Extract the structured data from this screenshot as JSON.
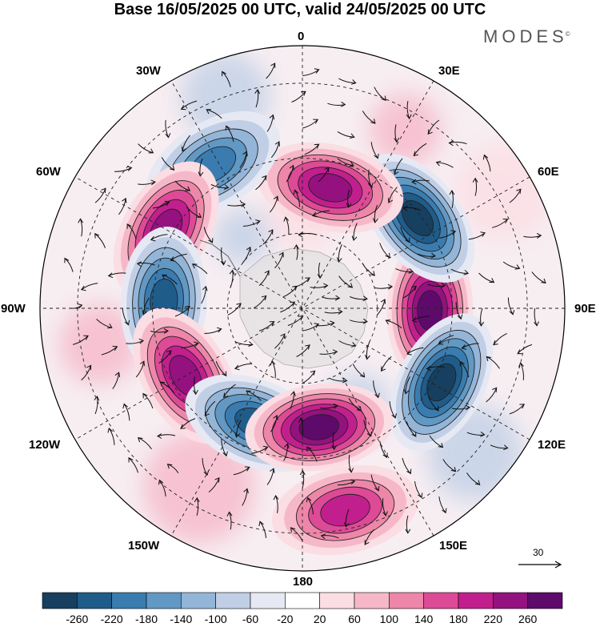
{
  "title": "Base 16/05/2025 00 UTC, valid 24/05/2025 00 UTC",
  "brand": {
    "name": "MODES",
    "mark": "©"
  },
  "longitude_labels": {
    "lon_0": "0",
    "lon_30e": "30E",
    "lon_60e": "60E",
    "lon_90e": "90E",
    "lon_120e": "120E",
    "lon_150e": "150E",
    "lon_180": "180",
    "lon_150w": "150W",
    "lon_120w": "120W",
    "lon_90w": "90W",
    "lon_60w": "60W",
    "lon_30w": "30W"
  },
  "reference_vector": {
    "value": "30"
  },
  "colorbar": {
    "colors": [
      "#173f5f",
      "#1f5c8a",
      "#3a7cb0",
      "#6198c4",
      "#93b5d8",
      "#c0cfe6",
      "#e6e9f3",
      "#ffffff",
      "#fbdde4",
      "#f6b8c9",
      "#ee86aa",
      "#dd4a96",
      "#c21f8e",
      "#94117f",
      "#5e0a6b"
    ],
    "tick_labels": [
      "-260",
      "-220",
      "-180",
      "-140",
      "-100",
      "-60",
      "-20",
      "20",
      "60",
      "100",
      "140",
      "180",
      "220",
      "260"
    ]
  },
  "anomaly_centers": [
    {
      "name": "anomaly-high-east",
      "lon": 91,
      "colat": 34,
      "value": 260
    },
    {
      "name": "anomaly-low-east-south",
      "lon": 118,
      "colat": 42,
      "value": -270
    },
    {
      "name": "anomaly-low-east-north",
      "lon": 52,
      "colat": 39,
      "value": -250
    },
    {
      "name": "anomaly-high-north",
      "lon": 13,
      "colat": 33,
      "value": 200
    },
    {
      "name": "anomaly-low-northwest",
      "lon": -32,
      "colat": 45,
      "value": -180
    },
    {
      "name": "anomaly-high-west",
      "lon": -60,
      "colat": 42,
      "value": 230
    },
    {
      "name": "anomaly-low-west",
      "lon": -87,
      "colat": 37,
      "value": -220
    },
    {
      "name": "anomaly-high-southwest",
      "lon": -120,
      "colat": 36,
      "value": 200
    },
    {
      "name": "anomaly-low-south",
      "lon": -158,
      "colat": 33,
      "value": -230
    },
    {
      "name": "anomaly-high-south",
      "lon": 172,
      "colat": 32,
      "value": 240
    },
    {
      "name": "anomaly-high-far-south",
      "lon": 168,
      "colat": 55,
      "value": 170
    }
  ]
}
